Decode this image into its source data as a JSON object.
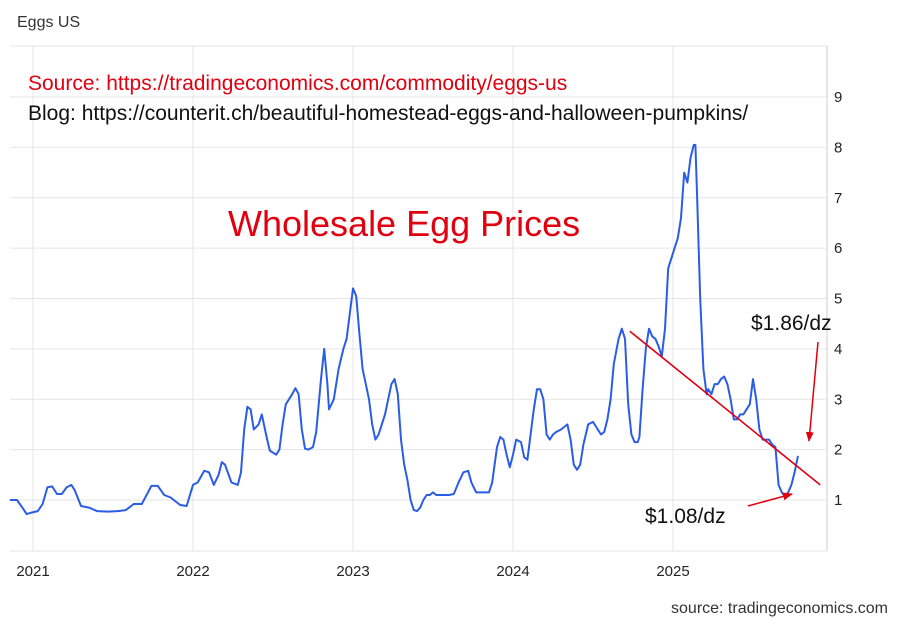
{
  "header": {
    "title": "Eggs US"
  },
  "footer": {
    "source": "source: tradingeconomics.com"
  },
  "overlay": {
    "source_line": "Source: https://tradingeconomics.com/commodity/eggs-us",
    "blog_line": "Blog: https://counterit.ch/beautiful-homestead-eggs-and-halloween-pumpkins/",
    "headline": "Wholesale Egg Prices",
    "annotation_high": "$1.86/dz",
    "annotation_low": "$1.08/dz"
  },
  "colors": {
    "series": "#2b5ce6",
    "annotation": "#e0000f",
    "trendline": "#e0000f",
    "grid": "#e6e6e6",
    "text": "#222222"
  },
  "chart_data": {
    "type": "line",
    "title": "Eggs US",
    "xlabel": "",
    "ylabel": "",
    "y_axis_side": "right",
    "ylim": [
      0,
      10
    ],
    "xlim": [
      2020.86,
      2025.92
    ],
    "grid": true,
    "legend": "none",
    "x_ticks": [
      {
        "value": 2021,
        "label": "2021"
      },
      {
        "value": 2022,
        "label": "2022"
      },
      {
        "value": 2023,
        "label": "2023"
      },
      {
        "value": 2024,
        "label": "2024"
      },
      {
        "value": 2025,
        "label": "2025"
      }
    ],
    "y_ticks": [
      {
        "value": 1,
        "label": "1"
      },
      {
        "value": 2,
        "label": "2"
      },
      {
        "value": 3,
        "label": "3"
      },
      {
        "value": 4,
        "label": "4"
      },
      {
        "value": 5,
        "label": "5"
      },
      {
        "value": 6,
        "label": "6"
      },
      {
        "value": 7,
        "label": "7"
      },
      {
        "value": 8,
        "label": "8"
      },
      {
        "value": 9,
        "label": "9"
      }
    ],
    "series": [
      {
        "points": [
          [
            2020.86,
            1.0
          ],
          [
            2020.9,
            1.0
          ],
          [
            2020.94,
            0.82
          ],
          [
            2020.96,
            0.72
          ],
          [
            2020.99,
            0.75
          ],
          [
            2021.03,
            0.78
          ],
          [
            2021.06,
            0.92
          ],
          [
            2021.09,
            1.25
          ],
          [
            2021.12,
            1.27
          ],
          [
            2021.15,
            1.12
          ],
          [
            2021.18,
            1.12
          ],
          [
            2021.21,
            1.25
          ],
          [
            2021.24,
            1.3
          ],
          [
            2021.26,
            1.2
          ],
          [
            2021.3,
            0.88
          ],
          [
            2021.35,
            0.85
          ],
          [
            2021.4,
            0.78
          ],
          [
            2021.47,
            0.77
          ],
          [
            2021.53,
            0.78
          ],
          [
            2021.58,
            0.8
          ],
          [
            2021.63,
            0.92
          ],
          [
            2021.68,
            0.92
          ],
          [
            2021.71,
            1.1
          ],
          [
            2021.74,
            1.28
          ],
          [
            2021.78,
            1.28
          ],
          [
            2021.82,
            1.1
          ],
          [
            2021.86,
            1.05
          ],
          [
            2021.92,
            0.9
          ],
          [
            2021.96,
            0.88
          ],
          [
            2022.0,
            1.3
          ],
          [
            2022.03,
            1.35
          ],
          [
            2022.07,
            1.58
          ],
          [
            2022.1,
            1.55
          ],
          [
            2022.13,
            1.3
          ],
          [
            2022.16,
            1.5
          ],
          [
            2022.18,
            1.75
          ],
          [
            2022.2,
            1.7
          ],
          [
            2022.24,
            1.35
          ],
          [
            2022.28,
            1.3
          ],
          [
            2022.3,
            1.55
          ],
          [
            2022.32,
            2.4
          ],
          [
            2022.34,
            2.85
          ],
          [
            2022.36,
            2.8
          ],
          [
            2022.38,
            2.4
          ],
          [
            2022.41,
            2.5
          ],
          [
            2022.43,
            2.7
          ],
          [
            2022.46,
            2.25
          ],
          [
            2022.48,
            1.98
          ],
          [
            2022.52,
            1.9
          ],
          [
            2022.54,
            2.0
          ],
          [
            2022.56,
            2.5
          ],
          [
            2022.58,
            2.9
          ],
          [
            2022.62,
            3.1
          ],
          [
            2022.64,
            3.22
          ],
          [
            2022.66,
            3.1
          ],
          [
            2022.68,
            2.4
          ],
          [
            2022.7,
            2.02
          ],
          [
            2022.72,
            2.0
          ],
          [
            2022.75,
            2.05
          ],
          [
            2022.77,
            2.35
          ],
          [
            2022.8,
            3.4
          ],
          [
            2022.82,
            4.0
          ],
          [
            2022.84,
            3.3
          ],
          [
            2022.85,
            2.8
          ],
          [
            2022.88,
            3.0
          ],
          [
            2022.91,
            3.6
          ],
          [
            2022.94,
            4.0
          ],
          [
            2022.96,
            4.2
          ],
          [
            2022.98,
            4.7
          ],
          [
            2023.0,
            5.2
          ],
          [
            2023.02,
            5.05
          ],
          [
            2023.04,
            4.3
          ],
          [
            2023.06,
            3.6
          ],
          [
            2023.08,
            3.3
          ],
          [
            2023.1,
            3.0
          ],
          [
            2023.12,
            2.5
          ],
          [
            2023.14,
            2.2
          ],
          [
            2023.16,
            2.3
          ],
          [
            2023.18,
            2.5
          ],
          [
            2023.2,
            2.7
          ],
          [
            2023.22,
            3.0
          ],
          [
            2023.24,
            3.3
          ],
          [
            2023.26,
            3.4
          ],
          [
            2023.28,
            3.1
          ],
          [
            2023.3,
            2.2
          ],
          [
            2023.32,
            1.7
          ],
          [
            2023.34,
            1.4
          ],
          [
            2023.36,
            1.0
          ],
          [
            2023.38,
            0.8
          ],
          [
            2023.4,
            0.78
          ],
          [
            2023.42,
            0.85
          ],
          [
            2023.44,
            1.0
          ],
          [
            2023.46,
            1.1
          ],
          [
            2023.48,
            1.1
          ],
          [
            2023.5,
            1.15
          ],
          [
            2023.52,
            1.1
          ],
          [
            2023.55,
            1.1
          ],
          [
            2023.6,
            1.1
          ],
          [
            2023.63,
            1.12
          ],
          [
            2023.66,
            1.35
          ],
          [
            2023.69,
            1.55
          ],
          [
            2023.72,
            1.58
          ],
          [
            2023.74,
            1.35
          ],
          [
            2023.77,
            1.15
          ],
          [
            2023.85,
            1.15
          ],
          [
            2023.87,
            1.35
          ],
          [
            2023.9,
            2.05
          ],
          [
            2023.92,
            2.25
          ],
          [
            2023.94,
            2.2
          ],
          [
            2023.96,
            1.9
          ],
          [
            2023.98,
            1.65
          ],
          [
            2024.0,
            1.9
          ],
          [
            2024.02,
            2.2
          ],
          [
            2024.05,
            2.15
          ],
          [
            2024.07,
            1.85
          ],
          [
            2024.09,
            1.8
          ],
          [
            2024.11,
            2.3
          ],
          [
            2024.13,
            2.8
          ],
          [
            2024.15,
            3.2
          ],
          [
            2024.17,
            3.2
          ],
          [
            2024.19,
            3.0
          ],
          [
            2024.21,
            2.3
          ],
          [
            2024.23,
            2.2
          ],
          [
            2024.25,
            2.3
          ],
          [
            2024.27,
            2.35
          ],
          [
            2024.3,
            2.4
          ],
          [
            2024.32,
            2.45
          ],
          [
            2024.34,
            2.5
          ],
          [
            2024.36,
            2.2
          ],
          [
            2024.38,
            1.7
          ],
          [
            2024.4,
            1.6
          ],
          [
            2024.42,
            1.7
          ],
          [
            2024.44,
            2.1
          ],
          [
            2024.47,
            2.5
          ],
          [
            2024.5,
            2.55
          ],
          [
            2024.53,
            2.4
          ],
          [
            2024.55,
            2.3
          ],
          [
            2024.57,
            2.35
          ],
          [
            2024.59,
            2.6
          ],
          [
            2024.61,
            3.0
          ],
          [
            2024.63,
            3.7
          ],
          [
            2024.66,
            4.2
          ],
          [
            2024.68,
            4.4
          ],
          [
            2024.7,
            4.2
          ],
          [
            2024.72,
            2.9
          ],
          [
            2024.74,
            2.3
          ],
          [
            2024.76,
            2.15
          ],
          [
            2024.78,
            2.15
          ],
          [
            2024.79,
            2.25
          ],
          [
            2024.81,
            3.2
          ],
          [
            2024.83,
            4.0
          ],
          [
            2024.85,
            4.4
          ],
          [
            2024.87,
            4.25
          ],
          [
            2024.89,
            4.2
          ],
          [
            2024.91,
            4.05
          ],
          [
            2024.93,
            3.85
          ],
          [
            2024.95,
            4.4
          ],
          [
            2024.97,
            5.6
          ],
          [
            2024.99,
            5.8
          ],
          [
            2025.01,
            6.0
          ],
          [
            2025.03,
            6.2
          ],
          [
            2025.05,
            6.6
          ],
          [
            2025.07,
            7.5
          ],
          [
            2025.09,
            7.3
          ],
          [
            2025.11,
            7.8
          ],
          [
            2025.13,
            8.05
          ],
          [
            2025.14,
            8.05
          ],
          [
            2025.15,
            7.1
          ],
          [
            2025.17,
            5.0
          ],
          [
            2025.19,
            3.6
          ],
          [
            2025.21,
            3.1
          ],
          [
            2025.22,
            3.2
          ],
          [
            2025.24,
            3.1
          ],
          [
            2025.26,
            3.3
          ],
          [
            2025.28,
            3.3
          ],
          [
            2025.3,
            3.4
          ],
          [
            2025.32,
            3.45
          ],
          [
            2025.34,
            3.3
          ],
          [
            2025.36,
            3.0
          ],
          [
            2025.38,
            2.6
          ],
          [
            2025.4,
            2.6
          ],
          [
            2025.42,
            2.7
          ],
          [
            2025.44,
            2.7
          ],
          [
            2025.46,
            2.8
          ],
          [
            2025.48,
            2.9
          ],
          [
            2025.5,
            3.4
          ],
          [
            2025.52,
            3.0
          ],
          [
            2025.54,
            2.4
          ],
          [
            2025.56,
            2.2
          ],
          [
            2025.58,
            2.2
          ],
          [
            2025.6,
            2.2
          ],
          [
            2025.62,
            2.1
          ],
          [
            2025.64,
            2.05
          ],
          [
            2025.66,
            1.3
          ],
          [
            2025.68,
            1.15
          ],
          [
            2025.7,
            1.08
          ],
          [
            2025.72,
            1.15
          ],
          [
            2025.74,
            1.3
          ],
          [
            2025.76,
            1.55
          ],
          [
            2025.78,
            1.86
          ]
        ]
      }
    ],
    "annotations": [
      {
        "text": "$1.86/dz",
        "target": [
          2025.78,
          1.86
        ]
      },
      {
        "text": "$1.08/dz",
        "target": [
          2025.7,
          1.08
        ]
      }
    ],
    "trendline": {
      "from": [
        2024.73,
        4.35
      ],
      "to": [
        2025.92,
        1.3
      ]
    }
  }
}
